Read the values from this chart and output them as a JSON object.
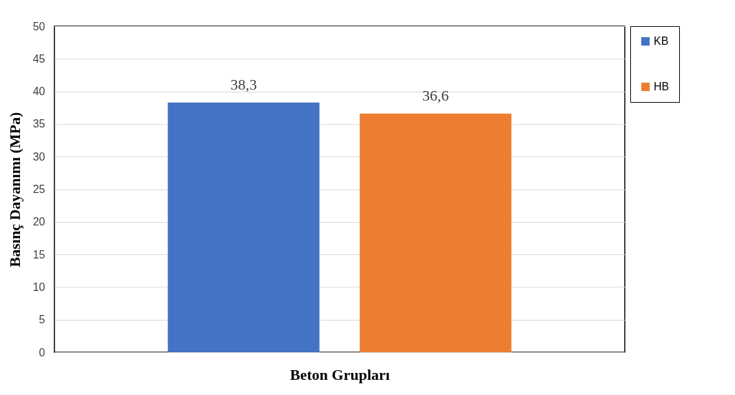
{
  "chart_data": {
    "type": "bar",
    "xlabel": "Beton Grupları",
    "ylabel": "Basınç Dayanımı (MPa)",
    "categories": [
      null
    ],
    "series": [
      {
        "name": "KB",
        "color": "#4472c4",
        "values": [
          38.3
        ],
        "value_labels": [
          "38,3"
        ]
      },
      {
        "name": "HB",
        "color": "#ed7d31",
        "values": [
          36.6
        ],
        "value_labels": [
          "36,6"
        ]
      }
    ],
    "ylim": [
      0,
      50
    ],
    "yticks": [
      0,
      5,
      10,
      15,
      20,
      25,
      30,
      35,
      40,
      45,
      50
    ],
    "grid": "y",
    "legend": "right"
  }
}
